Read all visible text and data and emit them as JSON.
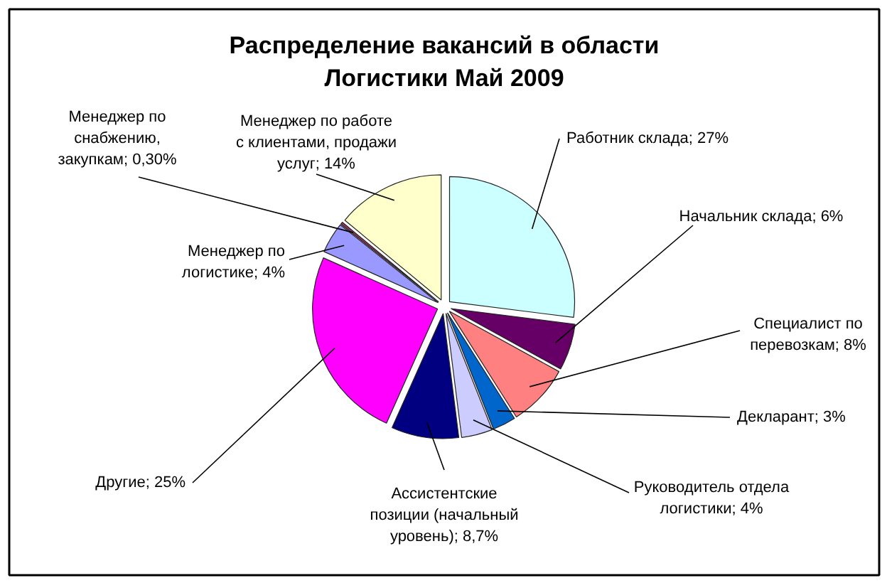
{
  "chart_data": {
    "type": "pie",
    "title": "Распределение вакансий в области Логистики Май 2009",
    "categories": [
      "Работник склада",
      "Начальник склада",
      "Специалист по перевозкам",
      "Декларант",
      "Руководитель отдела логистики",
      "Ассистентские позиции (начальный уровень)",
      "Другие",
      "Менеджер по логистике",
      "Менеджер по снабжению, закупкам",
      "Менеджер по работе с клиентами, продажи услуг"
    ],
    "values": [
      27,
      6,
      8,
      3,
      4,
      8.7,
      25,
      4,
      0.3,
      14
    ],
    "value_labels": [
      "27%",
      "6%",
      "8%",
      "3%",
      "4%",
      "8,7%",
      "25%",
      "4%",
      "0,30%",
      "14%"
    ],
    "colors": [
      "#ccffff",
      "#660066",
      "#ff8080",
      "#0066cc",
      "#ccccff",
      "#000080",
      "#ff00ff",
      "#9999ff",
      "#993366",
      "#ffffcc"
    ]
  }
}
